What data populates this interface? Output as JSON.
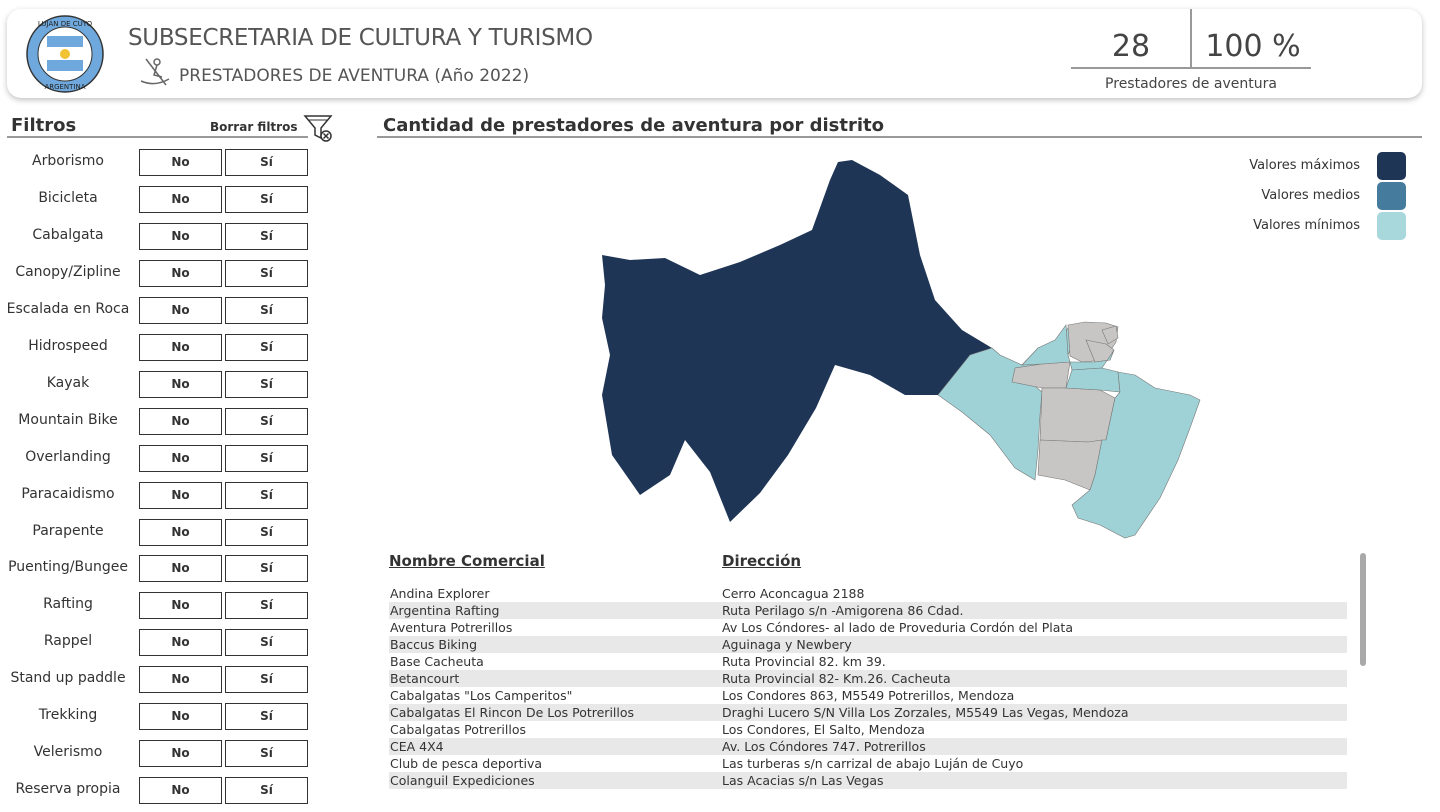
{
  "header": {
    "logo_text_top": "LUJAN DE CUYO",
    "logo_text_bottom": "ARGENTINA",
    "title": "SUBSECRETARIA DE CULTURA Y TURISMO",
    "subtitle": "PRESTADORES DE AVENTURA (Año 2022)",
    "kpi_count": "28",
    "kpi_percent": "100 %",
    "kpi_label": "Prestadores de aventura"
  },
  "filters": {
    "title": "Filtros",
    "clear_label": "Borrar filtros",
    "no_label": "No",
    "yes_label": "Sí",
    "items": [
      "Arborismo",
      "Bicicleta",
      "Cabalgata",
      "Canopy/Zipline",
      "Escalada en Roca",
      "Hidrospeed",
      "Kayak",
      "Mountain Bike",
      "Overlanding",
      "Paracaidismo",
      "Parapente",
      "Puenting/Bungee",
      "Rafting",
      "Rappel",
      "Stand up paddle",
      "Trekking",
      "Velerismo",
      "Reserva propia"
    ]
  },
  "map": {
    "title": "Cantidad de prestadores de aventura por distrito",
    "legend": [
      {
        "label": "Valores máximos",
        "color": "#1f3556"
      },
      {
        "label": "Valores medios",
        "color": "#457b9d"
      },
      {
        "label": "Valores mínimos",
        "color": "#a8d8dc"
      }
    ],
    "colors": {
      "max": "#1f3556",
      "min": "#9fd2d6",
      "none": "#c8c6c4"
    }
  },
  "table": {
    "headers": [
      "Nombre Comercial",
      "Dirección"
    ],
    "rows": [
      [
        "Andina Explorer",
        "Cerro Aconcagua 2188"
      ],
      [
        "Argentina Rafting",
        "Ruta Perilago s/n -Amigorena 86 Cdad."
      ],
      [
        "Aventura Potrerillos",
        "Av Los Cóndores- al lado de Proveduria Cordón del Plata"
      ],
      [
        "Baccus Biking",
        "Aguinaga y Newbery"
      ],
      [
        "Base Cacheuta",
        "Ruta Provincial 82. km 39."
      ],
      [
        "Betancourt",
        "Ruta Provincial 82- Km.26. Cacheuta"
      ],
      [
        "Cabalgatas \"Los Camperitos\"",
        "Los Condores 863, M5549 Potrerillos, Mendoza"
      ],
      [
        "Cabalgatas El Rincon De Los Potrerillos",
        "Draghi Lucero S/N Villa Los Zorzales, M5549 Las Vegas, Mendoza"
      ],
      [
        "Cabalgatas Potrerillos",
        "Los Condores, El Salto, Mendoza"
      ],
      [
        "CEA 4X4",
        "Av. Los Cóndores 747. Potrerillos"
      ],
      [
        "Club de pesca deportiva",
        "Las turberas s/n carrizal de abajo Luján de Cuyo"
      ],
      [
        "Colanguil Expediciones",
        "Las Acacias s/n Las Vegas"
      ]
    ]
  }
}
